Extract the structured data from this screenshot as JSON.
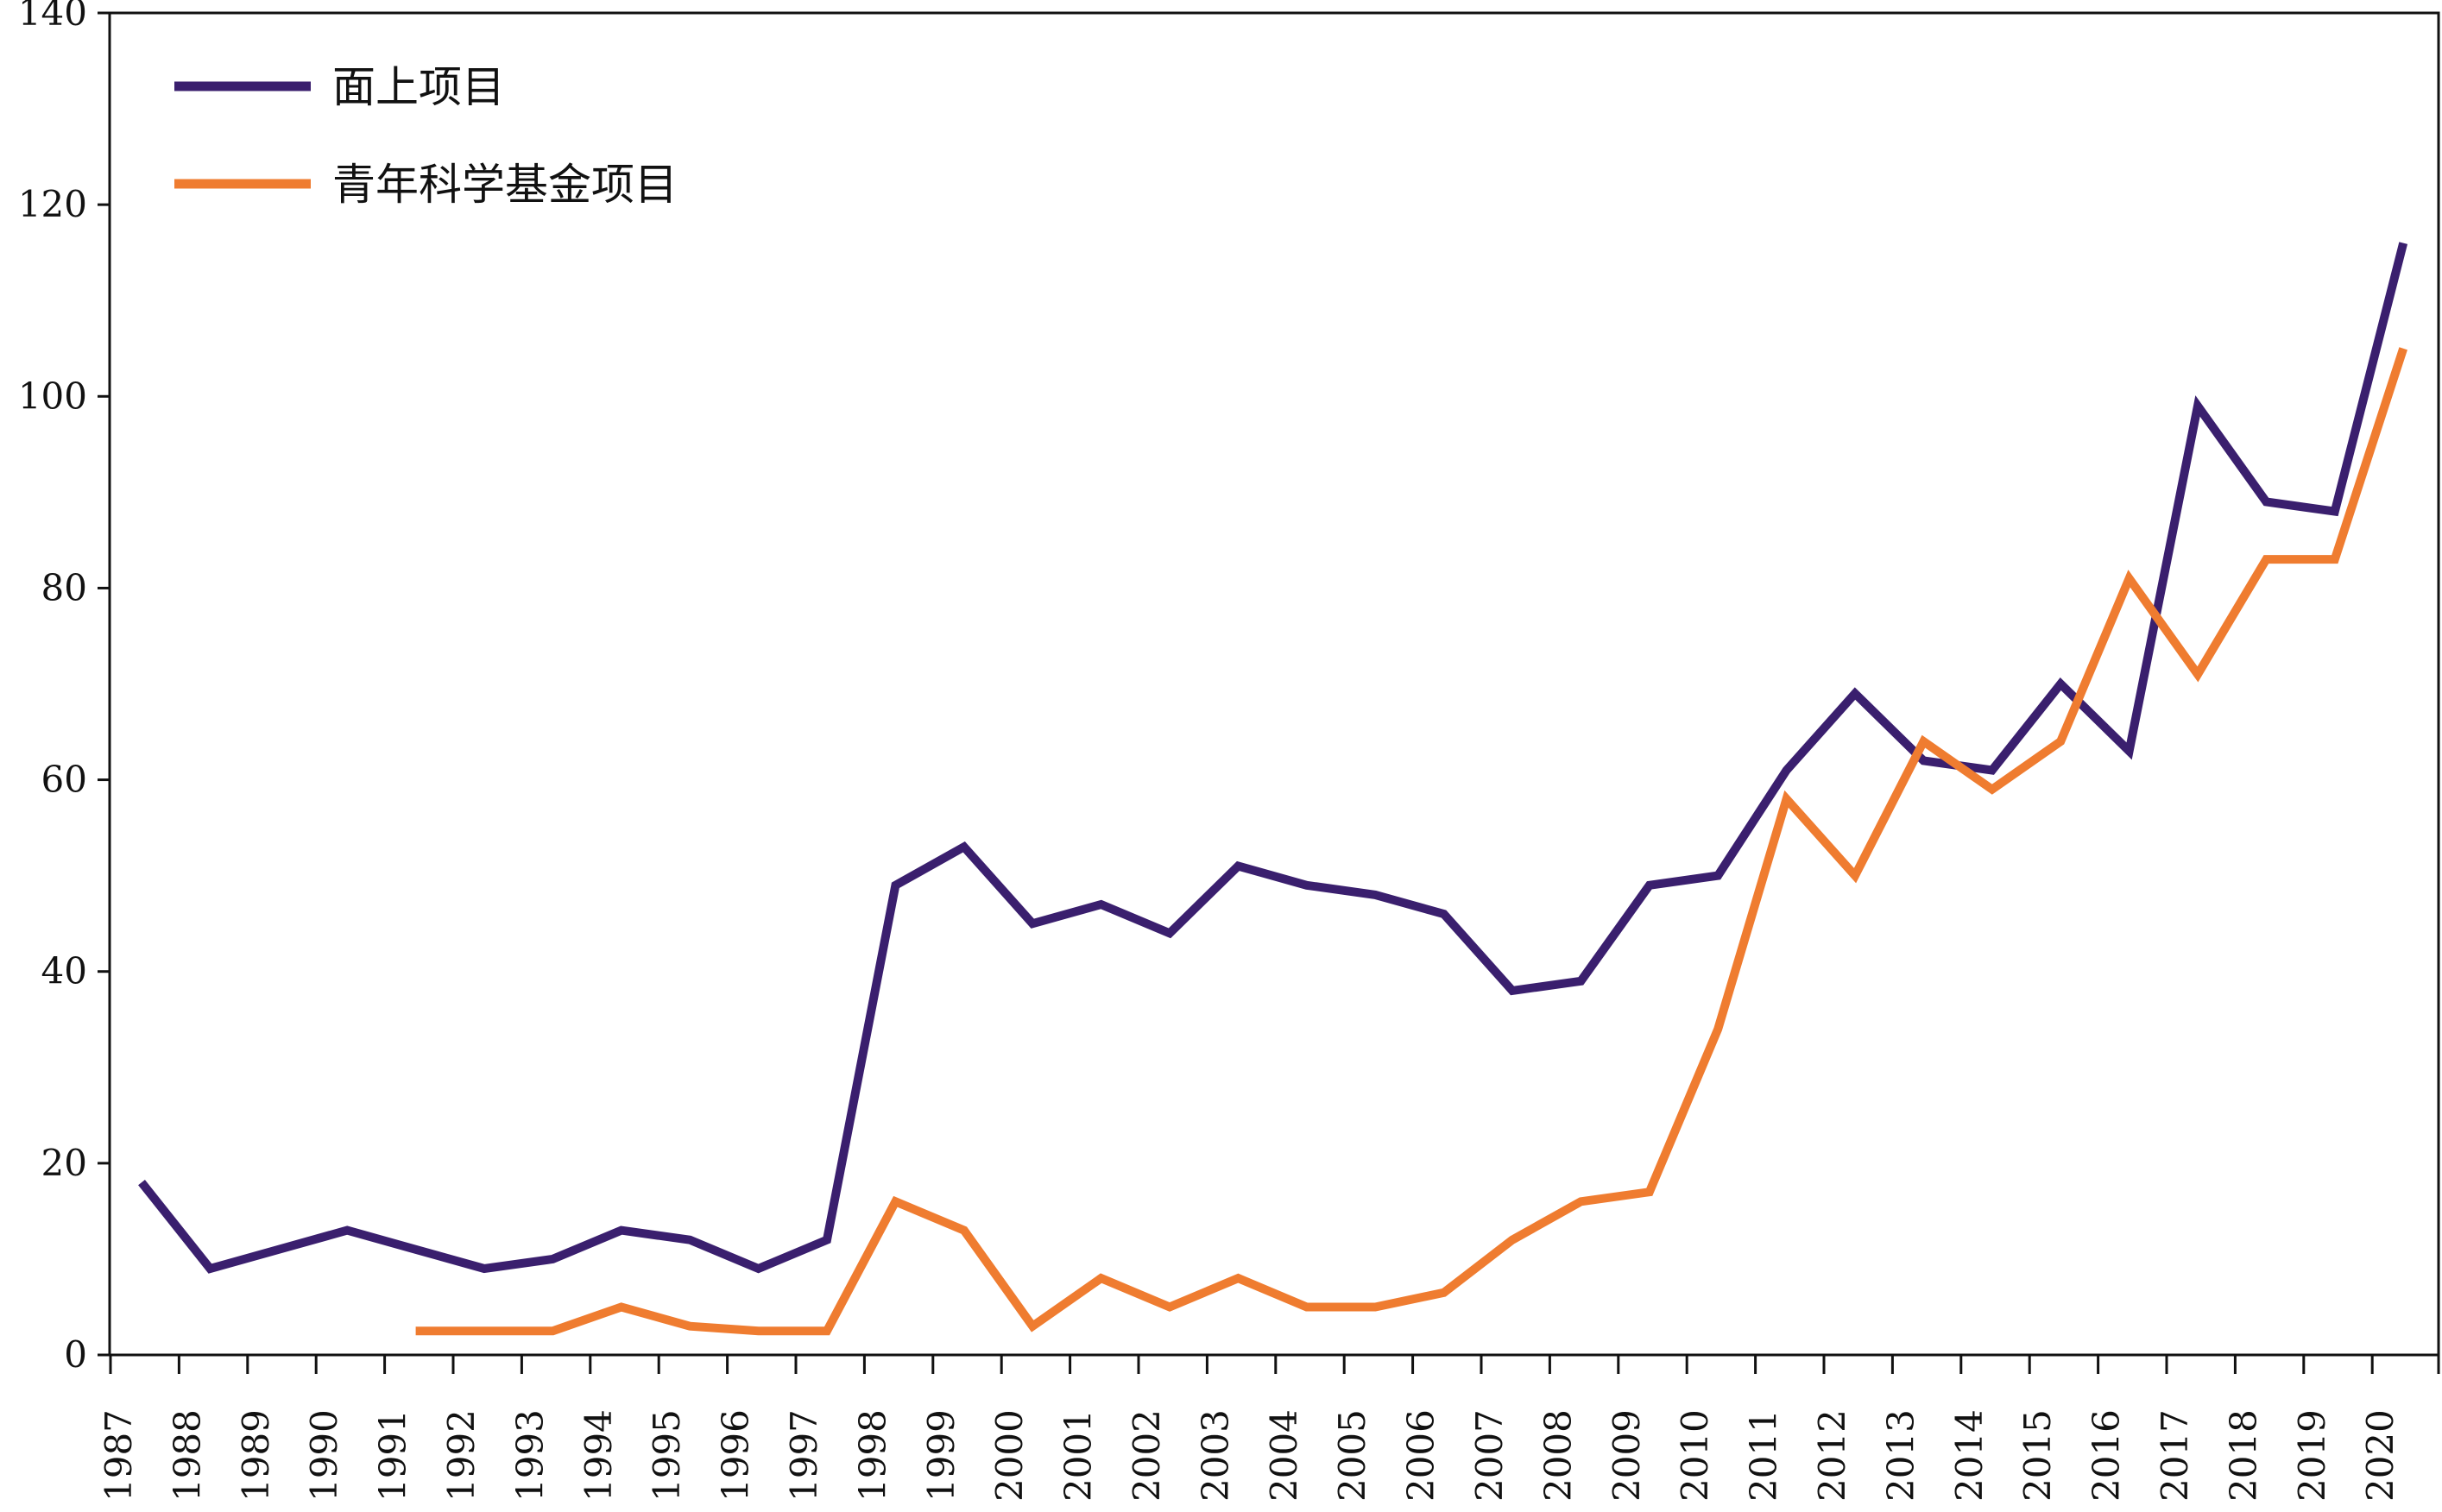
{
  "chart_data": {
    "type": "line",
    "title": "",
    "xlabel": "",
    "ylabel": "",
    "x": [
      1987,
      1988,
      1989,
      1990,
      1991,
      1992,
      1993,
      1994,
      1995,
      1996,
      1997,
      1998,
      1999,
      2000,
      2001,
      2002,
      2003,
      2004,
      2005,
      2006,
      2007,
      2008,
      2009,
      2010,
      2011,
      2012,
      2013,
      2014,
      2015,
      2016,
      2017,
      2018,
      2019,
      2020
    ],
    "x_tick_labels": [
      "1987",
      "1988",
      "1989",
      "1990",
      "1991",
      "1992",
      "1993",
      "1994",
      "1995",
      "1996",
      "1997",
      "1998",
      "1999",
      "2000",
      "2001",
      "2002",
      "2003",
      "2004",
      "2005",
      "2006",
      "2007",
      "2008",
      "2009",
      "2010",
      "2011",
      "2012",
      "2013",
      "2014",
      "2015",
      "2016",
      "2017",
      "2018",
      "2019",
      "2020"
    ],
    "ylim": [
      0,
      140
    ],
    "y_ticks": [
      0,
      20,
      40,
      60,
      80,
      100,
      120,
      140
    ],
    "y_tick_labels": [
      "0",
      "20",
      "40",
      "60",
      "80",
      "100",
      "120",
      "140"
    ],
    "grid": false,
    "legend_position": "top-left",
    "series": [
      {
        "name": "面上项目",
        "color": "#3a1f6e",
        "values": [
          18,
          9,
          11,
          13,
          11,
          9,
          10,
          13,
          12,
          9,
          12,
          49,
          53,
          45,
          47,
          44,
          51,
          49,
          48,
          46,
          38,
          39,
          49,
          50,
          61,
          69,
          62,
          61,
          70,
          63,
          99,
          89,
          88,
          116
        ]
      },
      {
        "name": "青年科学基金项目",
        "color": "#ef7c30",
        "values": [
          null,
          null,
          null,
          null,
          2.5,
          2.5,
          2.5,
          5,
          3,
          2.5,
          2.5,
          16,
          13,
          3,
          8,
          5,
          8,
          5,
          5,
          6.5,
          12,
          16,
          17,
          34,
          58,
          50,
          64,
          59,
          64,
          81,
          71,
          83,
          83,
          105
        ]
      }
    ]
  }
}
